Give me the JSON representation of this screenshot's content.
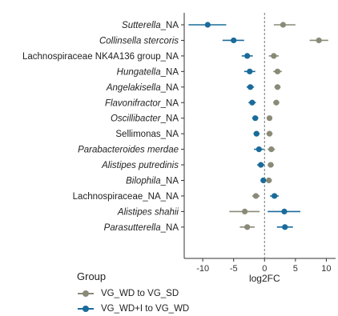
{
  "chart_data": {
    "type": "scatter",
    "subtype": "forest",
    "xlabel": "log2FC",
    "xlim": [
      -13,
      11.5
    ],
    "xticks": [
      -10,
      -5,
      0,
      5,
      10
    ],
    "reference_line": 0,
    "categories": [
      {
        "label": "Sutterella",
        "suffix": "_NA",
        "italic": true
      },
      {
        "label": "Collinsella stercoris",
        "suffix": "",
        "italic": true
      },
      {
        "label": "Lachnospiraceae NK4A136 group_NA",
        "suffix": "",
        "italic": false
      },
      {
        "label": "Hungatella",
        "suffix": "_NA",
        "italic": true
      },
      {
        "label": "Angelakisella",
        "suffix": "_NA",
        "italic": true
      },
      {
        "label": "Flavonifractor",
        "suffix": "_NA",
        "italic": true
      },
      {
        "label": "Oscillibacter",
        "suffix": "_NA",
        "italic": true
      },
      {
        "label": "Sellimonas_NA",
        "suffix": "",
        "italic": false
      },
      {
        "label": "Parabacteroides merdae",
        "suffix": "",
        "italic": true
      },
      {
        "label": "Alistipes putredinis",
        "suffix": "",
        "italic": true
      },
      {
        "label": "Bilophila",
        "suffix": "_NA",
        "italic": true
      },
      {
        "label": "Lachnospiraceae_NA_NA",
        "suffix": "",
        "italic": false
      },
      {
        "label": "Alistipes shahii",
        "suffix": "",
        "italic": true
      },
      {
        "label": "Parasutterella",
        "suffix": "_NA",
        "italic": true
      }
    ],
    "series": [
      {
        "name": "VG_WD to VG_SD",
        "color": "#8a8a78",
        "points": [
          {
            "category": 0,
            "value": 3.0,
            "low": 1.5,
            "high": 5.0
          },
          {
            "category": 1,
            "value": 8.8,
            "low": 7.3,
            "high": 10.3
          },
          {
            "category": 2,
            "value": 1.5,
            "low": 0.7,
            "high": 2.3
          },
          {
            "category": 3,
            "value": 2.1,
            "low": 1.4,
            "high": 2.8
          },
          {
            "category": 4,
            "value": 2.1,
            "low": 1.6,
            "high": 2.6
          },
          {
            "category": 5,
            "value": 1.9,
            "low": 1.4,
            "high": 2.4
          },
          {
            "category": 6,
            "value": 0.8,
            "low": 0.4,
            "high": 1.2
          },
          {
            "category": 7,
            "value": 0.8,
            "low": 0.3,
            "high": 1.3
          },
          {
            "category": 8,
            "value": 1.1,
            "low": 0.5,
            "high": 1.7
          },
          {
            "category": 9,
            "value": 1.0,
            "low": 0.5,
            "high": 1.5
          },
          {
            "category": 10,
            "value": 0.7,
            "low": 0.2,
            "high": 1.2
          },
          {
            "category": 11,
            "value": -1.4,
            "low": -2.0,
            "high": -0.8
          },
          {
            "category": 12,
            "value": -3.2,
            "low": -5.7,
            "high": -0.8
          },
          {
            "category": 13,
            "value": -2.8,
            "low": -4.0,
            "high": -1.6
          }
        ]
      },
      {
        "name": "VG_WD+I to VG_WD",
        "color": "#1a6b9a",
        "points": [
          {
            "category": 0,
            "value": -9.2,
            "low": -12.3,
            "high": -6.2
          },
          {
            "category": 1,
            "value": -5.0,
            "low": -6.8,
            "high": -3.3
          },
          {
            "category": 2,
            "value": -2.8,
            "low": -3.7,
            "high": -1.9
          },
          {
            "category": 3,
            "value": -2.4,
            "low": -3.3,
            "high": -1.5
          },
          {
            "category": 4,
            "value": -2.3,
            "low": -2.9,
            "high": -1.7
          },
          {
            "category": 5,
            "value": -2.0,
            "low": -2.6,
            "high": -1.4
          },
          {
            "category": 6,
            "value": -1.5,
            "low": -2.0,
            "high": -1.0
          },
          {
            "category": 7,
            "value": -1.3,
            "low": -1.8,
            "high": -0.8
          },
          {
            "category": 8,
            "value": -0.9,
            "low": -1.7,
            "high": -0.1
          },
          {
            "category": 9,
            "value": -0.6,
            "low": -1.2,
            "high": 0.0
          },
          {
            "category": 10,
            "value": -0.2,
            "low": -0.6,
            "high": 0.2
          },
          {
            "category": 11,
            "value": 1.6,
            "low": 0.9,
            "high": 2.3
          },
          {
            "category": 12,
            "value": 3.2,
            "low": 0.5,
            "high": 5.8
          },
          {
            "category": 13,
            "value": 3.3,
            "low": 2.0,
            "high": 4.6
          }
        ]
      }
    ],
    "legend": {
      "title": "Group",
      "position": "bottom"
    },
    "grid": false
  }
}
